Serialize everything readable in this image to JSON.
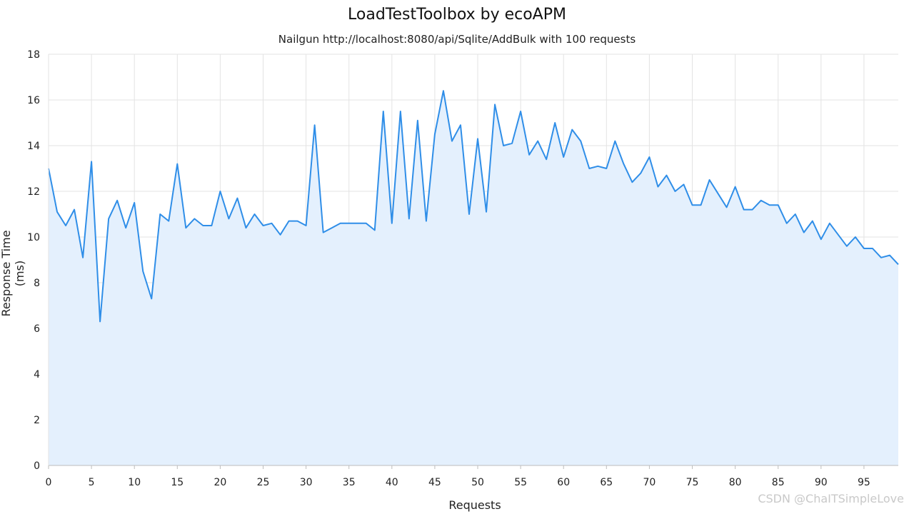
{
  "chart_data": {
    "type": "area",
    "title": "LoadTestToolbox by ecoAPM",
    "subtitle": "Nailgun http://localhost:8080/api/Sqlite/AddBulk with 100 requests",
    "xlabel": "Requests",
    "ylabel": "Response Time (ms)",
    "xlim": [
      0,
      99
    ],
    "ylim": [
      0,
      18
    ],
    "x_ticks": [
      "0",
      "5",
      "10",
      "15",
      "20",
      "25",
      "30",
      "35",
      "40",
      "45",
      "50",
      "55",
      "60",
      "65",
      "70",
      "75",
      "80",
      "85",
      "90",
      "95"
    ],
    "y_ticks": [
      "0",
      "2",
      "4",
      "6",
      "8",
      "10",
      "12",
      "14",
      "16",
      "18"
    ],
    "grid": true,
    "legend": "none",
    "series": [
      {
        "color": "#2f8ee8",
        "fill": "#e4f0fd",
        "x": [
          0,
          1,
          2,
          3,
          4,
          5,
          6,
          7,
          8,
          9,
          10,
          11,
          12,
          13,
          14,
          15,
          16,
          17,
          18,
          19,
          20,
          21,
          22,
          23,
          24,
          25,
          26,
          27,
          28,
          29,
          30,
          31,
          32,
          33,
          34,
          35,
          36,
          37,
          38,
          39,
          40,
          41,
          42,
          43,
          44,
          45,
          46,
          47,
          48,
          49,
          50,
          51,
          52,
          53,
          54,
          55,
          56,
          57,
          58,
          59,
          60,
          61,
          62,
          63,
          64,
          65,
          66,
          67,
          68,
          69,
          70,
          71,
          72,
          73,
          74,
          75,
          76,
          77,
          78,
          79,
          80,
          81,
          82,
          83,
          84,
          85,
          86,
          87,
          88,
          89,
          90,
          91,
          92,
          93,
          94,
          95,
          96,
          97,
          98,
          99
        ],
        "values": [
          13.0,
          11.1,
          10.5,
          11.2,
          9.1,
          13.3,
          6.3,
          10.8,
          11.6,
          10.4,
          11.5,
          8.5,
          7.3,
          11.0,
          10.7,
          13.2,
          10.4,
          10.8,
          10.5,
          10.5,
          12.0,
          10.8,
          11.7,
          10.4,
          11.0,
          10.5,
          10.6,
          10.1,
          10.7,
          10.7,
          10.5,
          14.9,
          10.2,
          10.4,
          10.6,
          10.6,
          10.6,
          10.6,
          10.3,
          15.5,
          10.6,
          15.5,
          10.8,
          15.1,
          10.7,
          14.5,
          16.4,
          14.2,
          14.9,
          11.0,
          14.3,
          11.1,
          15.8,
          14.0,
          14.1,
          15.5,
          13.6,
          14.2,
          13.4,
          15.0,
          13.5,
          14.7,
          14.2,
          13.0,
          13.1,
          13.0,
          14.2,
          13.2,
          12.4,
          12.8,
          13.5,
          12.2,
          12.7,
          12.0,
          12.3,
          11.4,
          11.4,
          12.5,
          11.9,
          11.3,
          12.2,
          11.2,
          11.2,
          11.6,
          11.4,
          11.4,
          10.6,
          11.0,
          10.2,
          10.7,
          9.9,
          10.6,
          10.1,
          9.6,
          10.0,
          9.5,
          9.5,
          9.1,
          9.2,
          8.8
        ]
      }
    ]
  },
  "watermark": "CSDN @ChaITSimpleLove"
}
